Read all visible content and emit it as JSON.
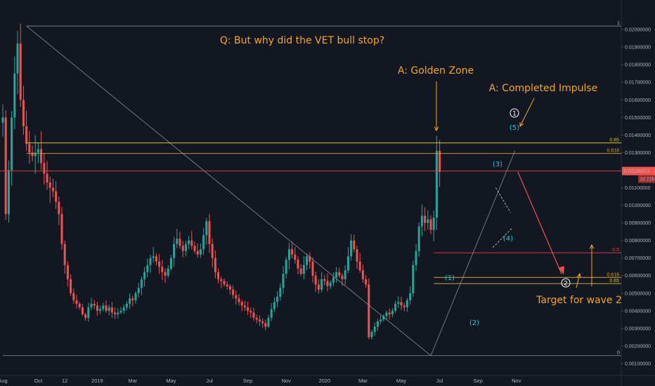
{
  "chart_data": {
    "type": "candlestick",
    "y_axis": {
      "min": 0.0008,
      "max": 0.0212,
      "ticks": [
        "0.02000000",
        "0.01900000",
        "0.01800000",
        "0.01700000",
        "0.01600000",
        "0.01500000",
        "0.01400000",
        "0.01300000",
        "0.01200000",
        "0.01100000",
        "0.01000000",
        "0.00900000",
        "0.00800000",
        "0.00700000",
        "0.00600000",
        "0.00500000",
        "0.00400000",
        "0.00300000",
        "0.00200000",
        "0.00100000"
      ],
      "tick_values": [
        0.02,
        0.019,
        0.018,
        0.017,
        0.016,
        0.015,
        0.014,
        0.013,
        0.012,
        0.011,
        0.01,
        0.009,
        0.008,
        0.007,
        0.006,
        0.005,
        0.004,
        0.003,
        0.002,
        0.001
      ],
      "top_label": "1",
      "bottom_label": "0"
    },
    "x_axis": {
      "labels": [
        "Aug",
        "Oct",
        "12",
        "2019",
        "Mar",
        "May",
        "Jul",
        "Sep",
        "Nov",
        "2020",
        "Mar",
        "May",
        "Jul",
        "Sep",
        "Nov"
      ],
      "label_index": [
        0,
        12,
        21,
        32,
        44,
        57,
        70,
        83,
        96,
        109,
        122,
        135,
        148,
        161,
        174
      ]
    },
    "last_price": "0.01195072",
    "countdown": "2d 22h",
    "colors": {
      "up": "#26a69a",
      "down": "#ef5350",
      "gold": "#d9c43a",
      "red_level": "#e0494a",
      "trend": "#8a8d96",
      "annotation": "#f5a623",
      "wave": "#26c6da"
    },
    "candles_close": [
      0.015,
      0.0095,
      0.012,
      0.015,
      0.0175,
      0.0192,
      0.016,
      0.0145,
      0.0135,
      0.013,
      0.0128,
      0.013,
      0.0132,
      0.0124,
      0.0118,
      0.0113,
      0.011,
      0.0108,
      0.0102,
      0.0095,
      0.0078,
      0.0066,
      0.0058,
      0.005,
      0.0046,
      0.0044,
      0.0042,
      0.0038,
      0.0036,
      0.0042,
      0.0044,
      0.0043,
      0.004,
      0.0041,
      0.0043,
      0.004,
      0.0042,
      0.0039,
      0.0038,
      0.0039,
      0.004,
      0.0042,
      0.0044,
      0.0047,
      0.0046,
      0.005,
      0.0053,
      0.0058,
      0.0062,
      0.0066,
      0.007,
      0.0071,
      0.0068,
      0.0065,
      0.0062,
      0.006,
      0.0064,
      0.007,
      0.0078,
      0.0081,
      0.0077,
      0.0074,
      0.0078,
      0.008,
      0.0077,
      0.0074,
      0.0072,
      0.0075,
      0.0083,
      0.0091,
      0.0078,
      0.007,
      0.0062,
      0.0058,
      0.0057,
      0.0055,
      0.0054,
      0.0052,
      0.0049,
      0.0047,
      0.0045,
      0.0043,
      0.0042,
      0.004,
      0.0039,
      0.0036,
      0.0035,
      0.0034,
      0.0033,
      0.0031,
      0.0036,
      0.0041,
      0.0045,
      0.0048,
      0.0053,
      0.0061,
      0.0069,
      0.0075,
      0.0072,
      0.0069,
      0.0064,
      0.0061,
      0.0066,
      0.0071,
      0.0068,
      0.006,
      0.0055,
      0.0052,
      0.0058,
      0.0057,
      0.0054,
      0.0056,
      0.0059,
      0.0062,
      0.006,
      0.0058,
      0.0063,
      0.0071,
      0.008,
      0.0075,
      0.0068,
      0.0063,
      0.0058,
      0.0055,
      0.0025,
      0.0028,
      0.0031,
      0.0034,
      0.0035,
      0.0037,
      0.0039,
      0.0038,
      0.004,
      0.0044,
      0.0045,
      0.0043,
      0.0042,
      0.0046,
      0.005,
      0.0066,
      0.0074,
      0.0088,
      0.0094,
      0.009,
      0.0092,
      0.0086,
      0.0093,
      0.0131,
      0.0119
    ],
    "fib_levels": [
      {
        "label": "0.65",
        "value": 0.01355,
        "color": "#d9c43a"
      },
      {
        "label": "0.618",
        "value": 0.01295,
        "color": "#d9a03a"
      },
      {
        "label": "0.5",
        "value": 0.0073,
        "color": "#e0494a"
      },
      {
        "label": "0.618",
        "value": 0.0059,
        "color": "#d9a03a"
      },
      {
        "label": "0.65",
        "value": 0.00555,
        "color": "#d9c43a"
      }
    ],
    "annotations": [
      {
        "text": "Q: But why did the VET bull stop?"
      },
      {
        "text": "A: Golden Zone"
      },
      {
        "text": "A: Completed Impulse"
      },
      {
        "text": "Target for wave 2"
      }
    ],
    "wave_labels": [
      "(1)",
      "(2)",
      "(3)",
      "(4)",
      "(5)"
    ],
    "circled_labels": [
      "1",
      "2"
    ]
  }
}
